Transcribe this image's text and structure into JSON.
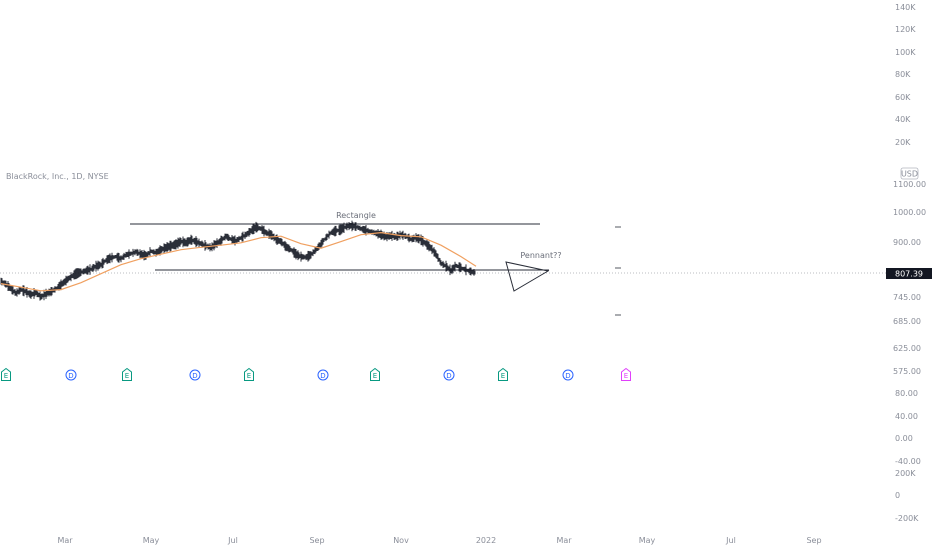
{
  "chart_data": {
    "type": "candlestick",
    "title": "BlackRock, Inc., 1D, NYSE",
    "currency": "USD",
    "last_price": "807.39",
    "price_axis_ticks": [
      "1100.00",
      "1000.00",
      "900.00",
      "807.39",
      "745.00",
      "685.00",
      "625.00",
      "575.00"
    ],
    "volume_axis_ticks": [
      "140K",
      "120K",
      "100K",
      "80K",
      "60K",
      "40K",
      "20K"
    ],
    "indicator_axis_ticks": [
      "80.00",
      "40.00",
      "0.00",
      "-40.00"
    ],
    "lower_axis_ticks": [
      "200K",
      "0",
      "-200K"
    ],
    "time_axis_ticks": [
      "Mar",
      "May",
      "Jul",
      "Sep",
      "Nov",
      "2022",
      "Mar",
      "May",
      "Jul",
      "Sep"
    ],
    "annotations": [
      "Rectangle",
      "Pennant??"
    ],
    "event_markers": [
      {
        "label": "E",
        "kind": "earnings",
        "color": "#089981"
      },
      {
        "label": "D",
        "kind": "dividend",
        "color": "#2962ff"
      },
      {
        "label": "E",
        "kind": "earnings",
        "color": "#089981"
      },
      {
        "label": "D",
        "kind": "dividend",
        "color": "#2962ff"
      },
      {
        "label": "E",
        "kind": "earnings",
        "color": "#089981"
      },
      {
        "label": "D",
        "kind": "dividend",
        "color": "#2962ff"
      },
      {
        "label": "E",
        "kind": "earnings",
        "color": "#089981"
      },
      {
        "label": "D",
        "kind": "dividend",
        "color": "#2962ff"
      },
      {
        "label": "E",
        "kind": "earnings",
        "color": "#089981"
      },
      {
        "label": "D",
        "kind": "dividend",
        "color": "#2962ff"
      },
      {
        "label": "E",
        "kind": "earnings_upcoming",
        "color": "#e040fb"
      }
    ],
    "price_path": [
      [
        0,
        780
      ],
      [
        5,
        770
      ],
      [
        10,
        755
      ],
      [
        15,
        740
      ],
      [
        20,
        752
      ],
      [
        25,
        745
      ],
      [
        30,
        735
      ],
      [
        35,
        742
      ],
      [
        40,
        728
      ],
      [
        45,
        738
      ],
      [
        50,
        745
      ],
      [
        55,
        755
      ],
      [
        60,
        768
      ],
      [
        65,
        782
      ],
      [
        70,
        795
      ],
      [
        75,
        805
      ],
      [
        80,
        810
      ],
      [
        85,
        815
      ],
      [
        90,
        820
      ],
      [
        95,
        830
      ],
      [
        100,
        835
      ],
      [
        105,
        850
      ],
      [
        110,
        858
      ],
      [
        115,
        862
      ],
      [
        120,
        855
      ],
      [
        125,
        868
      ],
      [
        130,
        872
      ],
      [
        135,
        878
      ],
      [
        140,
        870
      ],
      [
        145,
        865
      ],
      [
        150,
        880
      ],
      [
        155,
        875
      ],
      [
        160,
        885
      ],
      [
        165,
        892
      ],
      [
        170,
        898
      ],
      [
        175,
        903
      ],
      [
        180,
        913
      ],
      [
        185,
        908
      ],
      [
        190,
        918
      ],
      [
        195,
        912
      ],
      [
        200,
        905
      ],
      [
        205,
        898
      ],
      [
        210,
        892
      ],
      [
        215,
        905
      ],
      [
        220,
        915
      ],
      [
        225,
        930
      ],
      [
        230,
        920
      ],
      [
        235,
        915
      ],
      [
        240,
        925
      ],
      [
        245,
        935
      ],
      [
        250,
        948
      ],
      [
        255,
        960
      ],
      [
        260,
        955
      ],
      [
        265,
        942
      ],
      [
        270,
        935
      ],
      [
        275,
        920
      ],
      [
        280,
        912
      ],
      [
        285,
        895
      ],
      [
        290,
        885
      ],
      [
        295,
        870
      ],
      [
        300,
        862
      ],
      [
        305,
        860
      ],
      [
        310,
        868
      ],
      [
        315,
        885
      ],
      [
        320,
        905
      ],
      [
        325,
        925
      ],
      [
        330,
        942
      ],
      [
        335,
        948
      ],
      [
        340,
        952
      ],
      [
        345,
        962
      ],
      [
        350,
        965
      ],
      [
        355,
        962
      ],
      [
        360,
        955
      ],
      [
        365,
        950
      ],
      [
        370,
        945
      ],
      [
        375,
        940
      ],
      [
        380,
        935
      ],
      [
        385,
        928
      ],
      [
        390,
        932
      ],
      [
        395,
        928
      ],
      [
        400,
        935
      ],
      [
        405,
        930
      ],
      [
        410,
        920
      ],
      [
        415,
        925
      ],
      [
        420,
        918
      ],
      [
        425,
        905
      ],
      [
        430,
        890
      ],
      [
        435,
        870
      ],
      [
        440,
        840
      ],
      [
        445,
        830
      ],
      [
        450,
        815
      ],
      [
        455,
        832
      ],
      [
        460,
        825
      ],
      [
        465,
        818
      ],
      [
        470,
        812
      ],
      [
        475,
        808
      ]
    ],
    "ma_path": [
      [
        0,
        772
      ],
      [
        20,
        760
      ],
      [
        40,
        748
      ],
      [
        60,
        752
      ],
      [
        80,
        775
      ],
      [
        100,
        805
      ],
      [
        120,
        835
      ],
      [
        140,
        855
      ],
      [
        160,
        870
      ],
      [
        180,
        885
      ],
      [
        200,
        893
      ],
      [
        220,
        900
      ],
      [
        240,
        908
      ],
      [
        260,
        925
      ],
      [
        280,
        930
      ],
      [
        300,
        905
      ],
      [
        320,
        890
      ],
      [
        340,
        912
      ],
      [
        360,
        935
      ],
      [
        380,
        942
      ],
      [
        400,
        932
      ],
      [
        420,
        928
      ],
      [
        440,
        900
      ],
      [
        460,
        862
      ],
      [
        475,
        830
      ]
    ],
    "ylim": [
      580,
      1110
    ]
  }
}
